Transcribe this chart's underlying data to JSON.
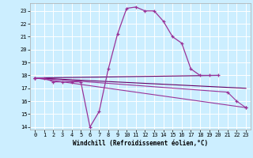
{
  "xlabel": "Windchill (Refroidissement éolien,°C)",
  "bg_color": "#cceeff",
  "grid_color": "#ffffff",
  "line_color": "#993399",
  "line_color2": "#660066",
  "xlim": [
    -0.5,
    23.5
  ],
  "ylim": [
    13.8,
    23.6
  ],
  "yticks": [
    14,
    15,
    16,
    17,
    18,
    19,
    20,
    21,
    22,
    23
  ],
  "xticks": [
    0,
    1,
    2,
    3,
    4,
    5,
    6,
    7,
    8,
    9,
    10,
    11,
    12,
    13,
    14,
    15,
    16,
    17,
    18,
    19,
    20,
    21,
    22,
    23
  ],
  "line1_x": [
    0,
    1,
    2,
    3,
    4,
    5,
    6,
    7,
    8,
    9,
    10,
    11,
    12,
    13,
    14,
    15,
    16,
    17,
    18,
    19,
    20
  ],
  "line1_y": [
    17.8,
    17.8,
    17.5,
    17.5,
    17.5,
    17.5,
    14.0,
    15.2,
    18.5,
    21.2,
    23.2,
    23.3,
    23.0,
    23.0,
    22.2,
    21.0,
    20.5,
    18.5,
    18.0,
    18.0,
    18.0
  ],
  "line2_x": [
    0,
    20
  ],
  "line2_y": [
    17.8,
    18.0
  ],
  "line3_x": [
    0,
    23
  ],
  "line3_y": [
    17.8,
    17.0
  ],
  "line4_x": [
    0,
    23
  ],
  "line4_y": [
    17.8,
    15.5
  ],
  "line5_x": [
    0,
    21,
    22,
    23
  ],
  "line5_y": [
    17.8,
    16.7,
    16.0,
    15.5
  ]
}
